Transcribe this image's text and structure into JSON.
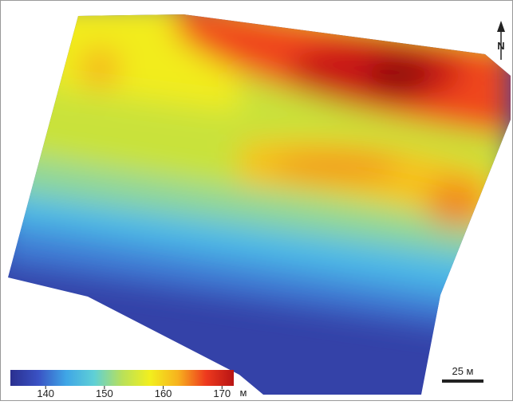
{
  "north_arrow": {
    "label": "N"
  },
  "scale_bar": {
    "label": "25 м"
  },
  "legend": {
    "min": 134,
    "max": 172,
    "ticks": [
      140,
      150,
      160,
      170
    ],
    "unit": "м",
    "colors": [
      "#2a2f8f",
      "#3a52c4",
      "#3fa6e6",
      "#5fd0d6",
      "#b8e05a",
      "#f2ef1e",
      "#f7b21e",
      "#ee3a1e",
      "#b81414"
    ]
  }
}
